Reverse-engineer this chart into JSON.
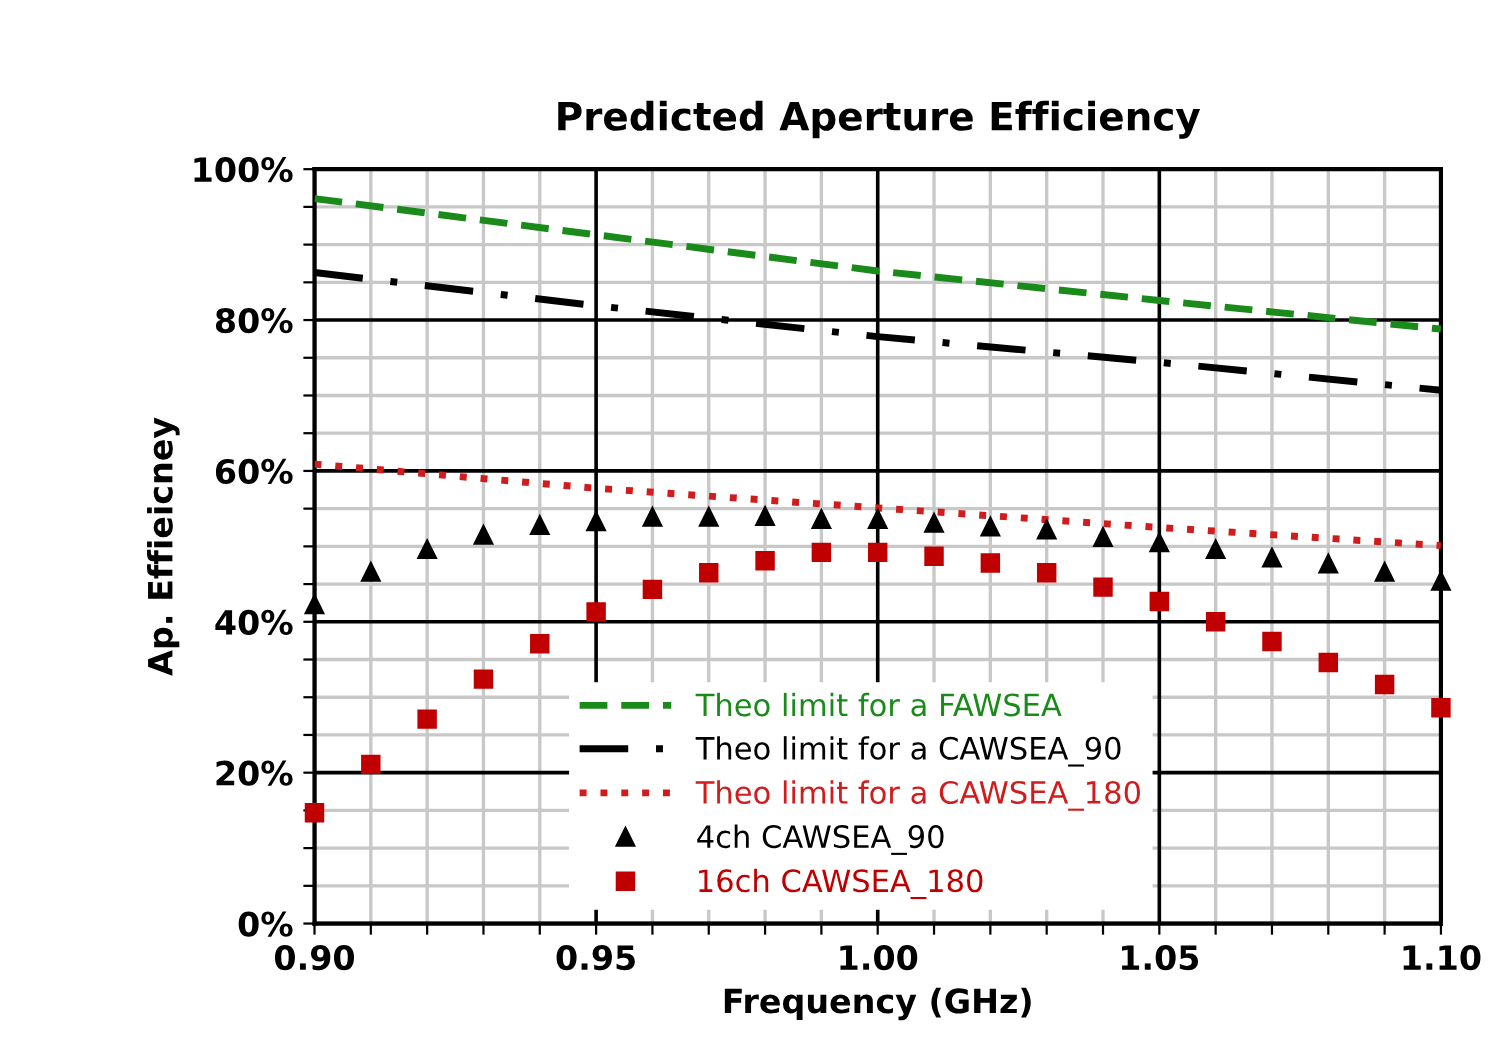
{
  "chart_data": {
    "type": "line",
    "title": "Predicted Aperture Efficiency",
    "xlabel": "Frequency (GHz)",
    "ylabel": "Ap. Effieicney",
    "xlim": [
      0.9,
      1.1
    ],
    "xticks": [
      {
        "value": 0.9,
        "label": "0.90"
      },
      {
        "value": 0.91,
        "label": null
      },
      {
        "value": 0.92,
        "label": null
      },
      {
        "value": 0.93,
        "label": null
      },
      {
        "value": 0.94,
        "label": null
      },
      {
        "value": 0.95,
        "label": "0.95"
      },
      {
        "value": 0.96,
        "label": null
      },
      {
        "value": 0.97,
        "label": null
      },
      {
        "value": 0.98,
        "label": null
      },
      {
        "value": 0.99,
        "label": null
      },
      {
        "value": 1.0,
        "label": "1.00"
      },
      {
        "value": 1.01,
        "label": null
      },
      {
        "value": 1.02,
        "label": null
      },
      {
        "value": 1.03,
        "label": null
      },
      {
        "value": 1.04,
        "label": null
      },
      {
        "value": 1.05,
        "label": "1.05"
      },
      {
        "value": 1.06,
        "label": null
      },
      {
        "value": 1.07,
        "label": null
      },
      {
        "value": 1.08,
        "label": null
      },
      {
        "value": 1.09,
        "label": null
      },
      {
        "value": 1.1,
        "label": "1.10"
      }
    ],
    "ylim": [
      0,
      100
    ],
    "yticks": [
      {
        "value": 0,
        "label": "0%"
      },
      {
        "value": 5,
        "label": null
      },
      {
        "value": 10,
        "label": null
      },
      {
        "value": 15,
        "label": null
      },
      {
        "value": 20,
        "label": "20%"
      },
      {
        "value": 25,
        "label": null
      },
      {
        "value": 30,
        "label": null
      },
      {
        "value": 35,
        "label": null
      },
      {
        "value": 40,
        "label": "40%"
      },
      {
        "value": 45,
        "label": null
      },
      {
        "value": 50,
        "label": null
      },
      {
        "value": 55,
        "label": null
      },
      {
        "value": 60,
        "label": "60%"
      },
      {
        "value": 65,
        "label": null
      },
      {
        "value": 70,
        "label": null
      },
      {
        "value": 75,
        "label": null
      },
      {
        "value": 80,
        "label": "80%"
      },
      {
        "value": 85,
        "label": null
      },
      {
        "value": 90,
        "label": null
      },
      {
        "value": 95,
        "label": null
      },
      {
        "value": 100,
        "label": "100%"
      }
    ],
    "grid": true,
    "legend": "bottom",
    "series": [
      {
        "name": "Theo limit for a FAWSEA",
        "color": "#1a8a1a",
        "line_style": "dashed",
        "marker": "none",
        "x": [
          0.9,
          0.95,
          1.0,
          1.05,
          1.1
        ],
        "values": [
          96.1,
          91.3,
          86.5,
          82.6,
          78.8
        ]
      },
      {
        "name": "Theo limit for a CAWSEA_90",
        "color": "#000000",
        "line_style": "dashdot",
        "marker": "none",
        "x": [
          0.9,
          0.95,
          1.0,
          1.05,
          1.1
        ],
        "values": [
          86.3,
          81.9,
          77.8,
          74.4,
          70.7
        ]
      },
      {
        "name": "Theo limit for a CAWSEA_180",
        "color": "#d01c1c",
        "line_style": "dotted",
        "marker": "none",
        "x": [
          0.9,
          0.95,
          1.0,
          1.05,
          1.1
        ],
        "values": [
          60.9,
          57.7,
          55.1,
          52.5,
          50.1
        ]
      },
      {
        "name": "4ch CAWSEA_90",
        "type": "scatter",
        "color": "#000000",
        "marker": "triangle",
        "x": [
          0.9,
          0.91,
          0.92,
          0.93,
          0.94,
          0.95,
          0.96,
          0.97,
          0.98,
          0.99,
          1.0,
          1.01,
          1.02,
          1.03,
          1.04,
          1.05,
          1.06,
          1.07,
          1.08,
          1.09,
          1.1
        ],
        "values": [
          42.3,
          46.6,
          49.6,
          51.5,
          52.8,
          53.3,
          53.9,
          53.9,
          54.0,
          53.6,
          53.6,
          53.1,
          52.6,
          52.2,
          51.2,
          50.5,
          49.6,
          48.5,
          47.7,
          46.6,
          45.4
        ]
      },
      {
        "name": "16ch CAWSEA_180",
        "type": "scatter",
        "color": "#c00000",
        "marker": "square",
        "x": [
          0.9,
          0.91,
          0.92,
          0.93,
          0.94,
          0.95,
          0.96,
          0.97,
          0.98,
          0.99,
          1.0,
          1.01,
          1.02,
          1.03,
          1.04,
          1.05,
          1.06,
          1.07,
          1.08,
          1.09,
          1.1
        ],
        "values": [
          14.7,
          21.1,
          27.1,
          32.4,
          37.1,
          41.3,
          44.3,
          46.5,
          48.1,
          49.2,
          49.2,
          48.7,
          47.8,
          46.5,
          44.6,
          42.7,
          40.0,
          37.4,
          34.6,
          31.7,
          28.6
        ]
      }
    ]
  }
}
